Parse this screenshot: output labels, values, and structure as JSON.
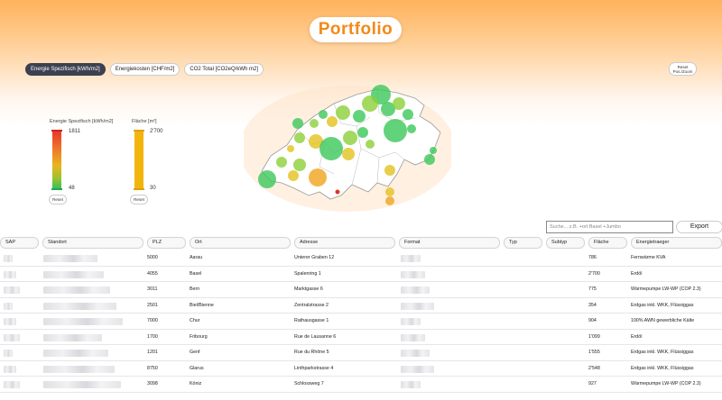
{
  "header": {
    "title": "Portfolio"
  },
  "tabs": [
    {
      "label": "Energie Spezifisch [kWh/m2]",
      "active": true
    },
    {
      "label": "Energiekosten [CHF/m2]",
      "active": false
    },
    {
      "label": "CO2 Total [CO2eQ/kWh m2]",
      "active": false
    }
  ],
  "reset_zoom": {
    "line1": "Reset",
    "line2": "Pos./Zoom"
  },
  "legend": {
    "energy": {
      "label": "Energie Spezifisch [kWh/m2]",
      "max": "1811",
      "min": "48",
      "reset": "Reset",
      "colors": [
        "#e8362c",
        "#ef7f2a",
        "#e8b61d",
        "#9bc230",
        "#2fbf62"
      ]
    },
    "area": {
      "label": "Fläche [m²]",
      "max": "2'700",
      "min": "30",
      "reset": "Reset",
      "color": "#f2b50e"
    }
  },
  "map": {
    "country": "Switzerland",
    "marker_colors": {
      "green": "#3cc85a",
      "lightgreen": "#8ccf3a",
      "yellow": "#e3c21e",
      "orange": "#f0a92b",
      "red": "#e0342a"
    }
  },
  "search": {
    "placeholder": "Suche... z.B. +ort Basel +Jumbo"
  },
  "export": {
    "label": "Export"
  },
  "table": {
    "columns": [
      "SAP",
      "Standort",
      "PLZ",
      "Ort",
      "Adresse",
      "Format",
      "Typ",
      "Subtyp",
      "Fläche",
      "Energietraeger"
    ],
    "rows": [
      {
        "plz": "5000",
        "ort": "Aarau",
        "adresse": "Unterer Graben 12",
        "flaeche": "786",
        "energie": "Fernwärme KVA"
      },
      {
        "plz": "4055",
        "ort": "Basel",
        "adresse": "Spalenring 1",
        "flaeche": "2'700",
        "energie": "Erdöl"
      },
      {
        "plz": "3011",
        "ort": "Bern",
        "adresse": "Marktgasse 6",
        "flaeche": "775",
        "energie": "Wärmepumpe LW-WP (COP 2.3)"
      },
      {
        "plz": "2501",
        "ort": "Biel/Bienne",
        "adresse": "Zentralstrasse 2",
        "flaeche": "354",
        "energie": "Erdgas inkl. WKK, Flüssiggas"
      },
      {
        "plz": "7000",
        "ort": "Chur",
        "adresse": "Rathausgasse 1",
        "flaeche": "904",
        "energie": "100% AWN gewerbliche Kälte"
      },
      {
        "plz": "1700",
        "ort": "Fribourg",
        "adresse": "Rue de Lausanne 6",
        "flaeche": "1'099",
        "energie": "Erdöl"
      },
      {
        "plz": "1201",
        "ort": "Genf",
        "adresse": "Rue du Rhône 5",
        "flaeche": "1'555",
        "energie": "Erdgas inkl. WKK, Flüssiggas"
      },
      {
        "plz": "8750",
        "ort": "Glarus",
        "adresse": "Linthparkstrasse 4",
        "flaeche": "2'548",
        "energie": "Erdgas inkl. WKK, Flüssiggas"
      },
      {
        "plz": "3098",
        "ort": "Köniz",
        "adresse": "Schlossweg 7",
        "flaeche": "927",
        "energie": "Wärmepumpe LW-WP (COP 2.3)"
      }
    ]
  }
}
